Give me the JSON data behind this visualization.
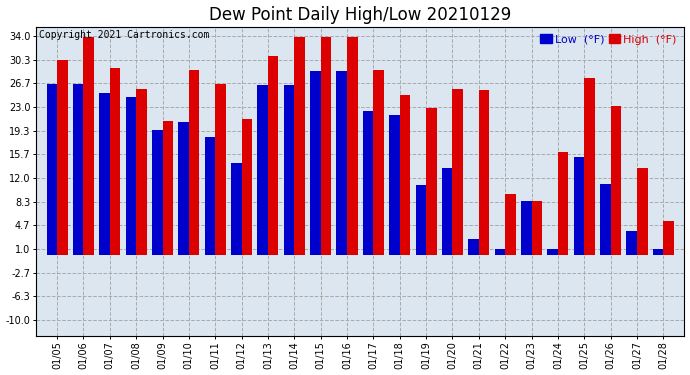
{
  "title": "Dew Point Daily High/Low 20210129",
  "copyright": "Copyright 2021 Cartronics.com",
  "dates": [
    "01/05",
    "01/06",
    "01/07",
    "01/08",
    "01/09",
    "01/10",
    "01/11",
    "01/12",
    "01/13",
    "01/14",
    "01/15",
    "01/16",
    "01/17",
    "01/18",
    "01/19",
    "01/20",
    "01/21",
    "01/22",
    "01/23",
    "01/24",
    "01/25",
    "01/26",
    "01/27",
    "01/28"
  ],
  "high_values": [
    30.3,
    33.8,
    29.0,
    25.8,
    20.8,
    28.8,
    26.6,
    21.2,
    31.0,
    33.8,
    33.8,
    33.8,
    28.8,
    24.8,
    22.9,
    25.8,
    25.6,
    9.5,
    8.5,
    16.1,
    27.5,
    23.2,
    13.5,
    5.4
  ],
  "low_values": [
    26.6,
    26.6,
    25.2,
    24.5,
    19.4,
    20.7,
    18.4,
    14.3,
    26.4,
    26.4,
    28.6,
    28.6,
    22.4,
    21.8,
    10.9,
    13.5,
    2.5,
    1.0,
    8.5,
    1.0,
    15.3,
    11.0,
    3.8,
    1.0
  ],
  "low_neg_values": [
    0,
    0,
    0,
    0,
    0,
    0,
    0,
    0,
    0,
    0,
    0,
    0,
    0,
    0,
    0,
    0,
    0,
    0,
    0,
    0,
    0,
    0,
    0,
    0
  ],
  "low_color": "#0000cc",
  "high_color": "#dd0000",
  "bg_color": "#ffffff",
  "plot_bg_color": "#dce6f1",
  "grid_color": "#aaaaaa",
  "ytick_values": [
    -10.0,
    -6.3,
    -2.7,
    1.0,
    4.7,
    8.3,
    12.0,
    15.7,
    19.3,
    23.0,
    26.7,
    30.3,
    34.0
  ],
  "ytick_labels": [
    "-10.0",
    "-6.3",
    "-2.7",
    "1.0",
    "4.7",
    "8.3",
    "12.0",
    "15.7",
    "19.3",
    "23.0",
    "26.7",
    "30.3",
    "34.0"
  ],
  "ylim": [
    -12.5,
    35.5
  ],
  "title_fontsize": 12,
  "copyright_fontsize": 7,
  "tick_fontsize": 7,
  "legend_fontsize": 8,
  "bar_width": 0.4
}
